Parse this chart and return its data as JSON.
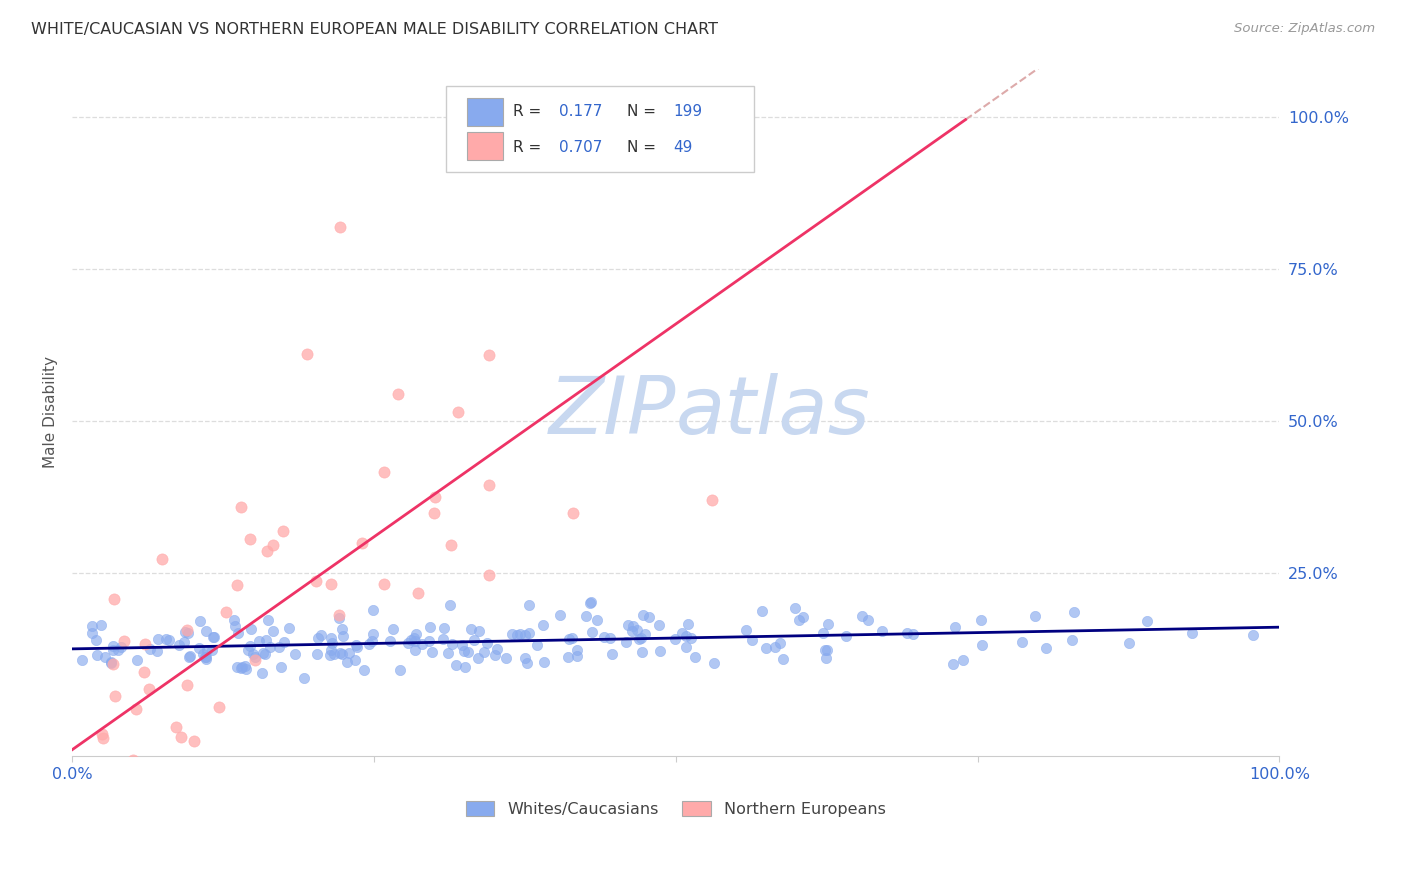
{
  "title": "WHITE/CAUCASIAN VS NORTHERN EUROPEAN MALE DISABILITY CORRELATION CHART",
  "source": "Source: ZipAtlas.com",
  "ylabel": "Male Disability",
  "background_color": "#ffffff",
  "grid_color": "#dddddd",
  "blue_color": "#88aaee",
  "pink_color": "#ffaaaa",
  "blue_line_color": "#000080",
  "pink_line_color": "#ee3366",
  "dash_line_color": "#ddaaaa",
  "watermark_zip_color": "#c8d8f0",
  "watermark_atlas_color": "#c8d8f0",
  "R_blue": 0.177,
  "N_blue": 199,
  "R_pink": 0.707,
  "N_pink": 49,
  "legend_label_blue": "Whites/Caucasians",
  "legend_label_pink": "Northern Europeans",
  "title_color": "#333333",
  "axis_label_color": "#3366cc",
  "r_text_color": "#333333",
  "legend_border_color": "#cccccc"
}
